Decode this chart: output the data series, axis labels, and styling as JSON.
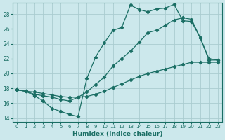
{
  "xlabel": "Humidex (Indice chaleur)",
  "bg_color": "#cce8ec",
  "line_color": "#1a6e64",
  "grid_color": "#b8d8dc",
  "xlim": [
    -0.5,
    23.5
  ],
  "ylim": [
    13.5,
    29.5
  ],
  "xticks": [
    0,
    1,
    2,
    3,
    4,
    5,
    6,
    7,
    8,
    9,
    10,
    11,
    12,
    13,
    14,
    15,
    16,
    17,
    18,
    19,
    20,
    21,
    22,
    23
  ],
  "yticks": [
    14,
    16,
    18,
    20,
    22,
    24,
    26,
    28
  ],
  "line1_x": [
    0,
    1,
    2,
    3,
    4,
    5,
    6,
    7,
    8,
    9,
    10,
    11,
    12,
    13,
    14,
    15,
    16,
    17,
    18,
    19,
    20,
    21,
    22,
    23
  ],
  "line1_y": [
    17.8,
    17.6,
    17.0,
    16.3,
    15.3,
    14.9,
    14.5,
    14.2,
    19.3,
    22.2,
    24.1,
    25.8,
    26.2,
    29.2,
    28.6,
    28.3,
    28.7,
    28.8,
    29.3,
    27.1,
    27.0,
    24.8,
    21.8,
    21.8
  ],
  "line2_x": [
    0,
    1,
    2,
    3,
    4,
    5,
    6,
    7,
    8,
    9,
    10,
    11,
    12,
    13,
    14,
    15,
    16,
    17,
    18,
    19,
    20,
    21,
    22,
    23
  ],
  "line2_y": [
    17.8,
    17.6,
    17.2,
    17.0,
    16.8,
    16.5,
    16.3,
    16.8,
    17.5,
    18.5,
    19.5,
    21.0,
    22.0,
    23.0,
    24.2,
    25.5,
    25.8,
    26.5,
    27.2,
    27.5,
    27.3,
    24.8,
    22.0,
    21.8
  ],
  "line3_x": [
    0,
    1,
    2,
    3,
    4,
    5,
    6,
    7,
    8,
    9,
    10,
    11,
    12,
    13,
    14,
    15,
    16,
    17,
    18,
    19,
    20,
    21,
    22,
    23
  ],
  "line3_y": [
    17.8,
    17.6,
    17.5,
    17.3,
    17.1,
    16.9,
    16.8,
    16.8,
    16.9,
    17.2,
    17.6,
    18.1,
    18.6,
    19.1,
    19.6,
    20.0,
    20.3,
    20.6,
    20.9,
    21.2,
    21.5,
    21.5,
    21.5,
    21.5
  ]
}
